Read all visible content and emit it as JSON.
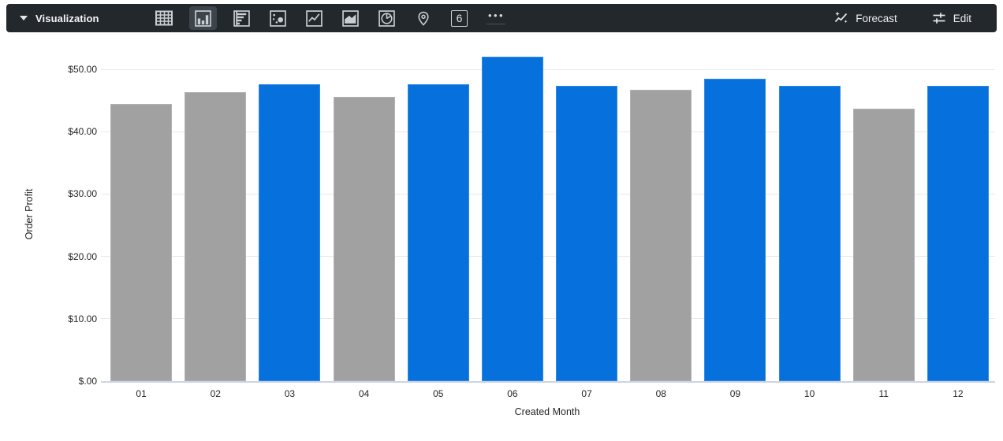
{
  "toolbar": {
    "bg_color": "#23282d",
    "label": "Visualization",
    "viz_types": [
      {
        "name": "table",
        "selected": false
      },
      {
        "name": "column",
        "selected": true
      },
      {
        "name": "bar",
        "selected": false
      },
      {
        "name": "scatter",
        "selected": false
      },
      {
        "name": "line",
        "selected": false
      },
      {
        "name": "area",
        "selected": false
      },
      {
        "name": "pie",
        "selected": false
      },
      {
        "name": "map",
        "selected": false
      },
      {
        "name": "single-value",
        "selected": false
      },
      {
        "name": "more",
        "selected": false
      }
    ],
    "single_value_glyph": "6",
    "more_glyph": "•••",
    "forecast_label": "Forecast",
    "edit_label": "Edit"
  },
  "chart_data": {
    "type": "bar",
    "title": "",
    "xlabel": "Created Month",
    "ylabel": "Order Profit",
    "categories": [
      "01",
      "02",
      "03",
      "04",
      "05",
      "06",
      "07",
      "08",
      "09",
      "10",
      "11",
      "12"
    ],
    "values": [
      44.5,
      46.4,
      47.6,
      45.6,
      47.6,
      52.0,
      47.3,
      46.7,
      48.5,
      47.3,
      43.7,
      47.3
    ],
    "colors": [
      "gray",
      "gray",
      "blue",
      "gray",
      "blue",
      "blue",
      "blue",
      "gray",
      "blue",
      "blue",
      "gray",
      "blue"
    ],
    "palette": {
      "blue": "#0670dd",
      "gray": "#a1a1a1"
    },
    "yticks": [
      {
        "value": 0,
        "label": "$.00"
      },
      {
        "value": 10,
        "label": "$10.00"
      },
      {
        "value": 20,
        "label": "$20.00"
      },
      {
        "value": 30,
        "label": "$30.00"
      },
      {
        "value": 40,
        "label": "$40.00"
      },
      {
        "value": 50,
        "label": "$50.00"
      }
    ],
    "ylim": [
      0,
      53.5
    ],
    "grid": true,
    "legend": "none"
  }
}
